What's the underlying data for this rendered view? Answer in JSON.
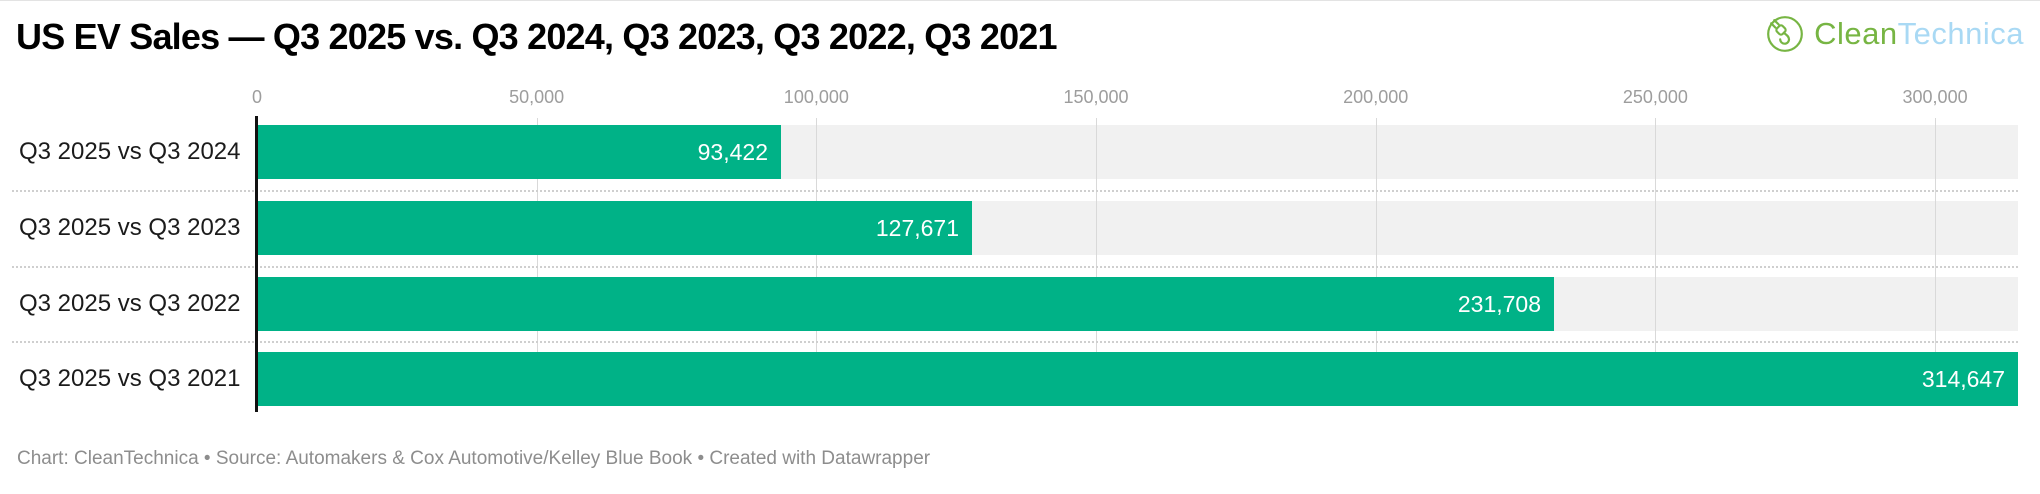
{
  "header": {
    "title": "US EV Sales — Q3 2025 vs. Q3 2024, Q3 2023, Q3 2022, Q3 2021",
    "logo": {
      "text_green": "Clean",
      "text_blue": "Technica",
      "icon": "plug-cord-circle-icon",
      "green_color": "#77b543",
      "blue_color": "#a9d9f4"
    }
  },
  "chart_data": {
    "type": "bar",
    "orientation": "horizontal",
    "title": "US EV Sales — Q3 2025 vs. Q3 2024, Q3 2023, Q3 2022, Q3 2021",
    "categories": [
      "Q3 2025 vs Q3 2024",
      "Q3 2025 vs Q3 2023",
      "Q3 2025 vs Q3 2022",
      "Q3 2025 vs Q3 2021"
    ],
    "values": [
      93422,
      127671,
      231708,
      314647
    ],
    "value_labels": [
      "93,422",
      "127,671",
      "231,708",
      "314,647"
    ],
    "xlim": [
      0,
      314647
    ],
    "x_ticks": [
      0,
      50000,
      100000,
      150000,
      200000,
      250000,
      300000
    ],
    "x_tick_labels": [
      "0",
      "50,000",
      "100,000",
      "150,000",
      "200,000",
      "250,000",
      "300,000"
    ],
    "xlabel": "",
    "ylabel": "",
    "legend": "none",
    "grid": true,
    "bar_color": "#00b287",
    "row_track_color": "#f1f1f1",
    "value_label_color": "#ffffff",
    "axis_line_color": "#111111",
    "tick_label_color": "#9d9d9d"
  },
  "footer": {
    "text": "Chart: CleanTechnica • Source: Automakers & Cox Automotive/Kelley Blue Book • Created with Datawrapper"
  }
}
